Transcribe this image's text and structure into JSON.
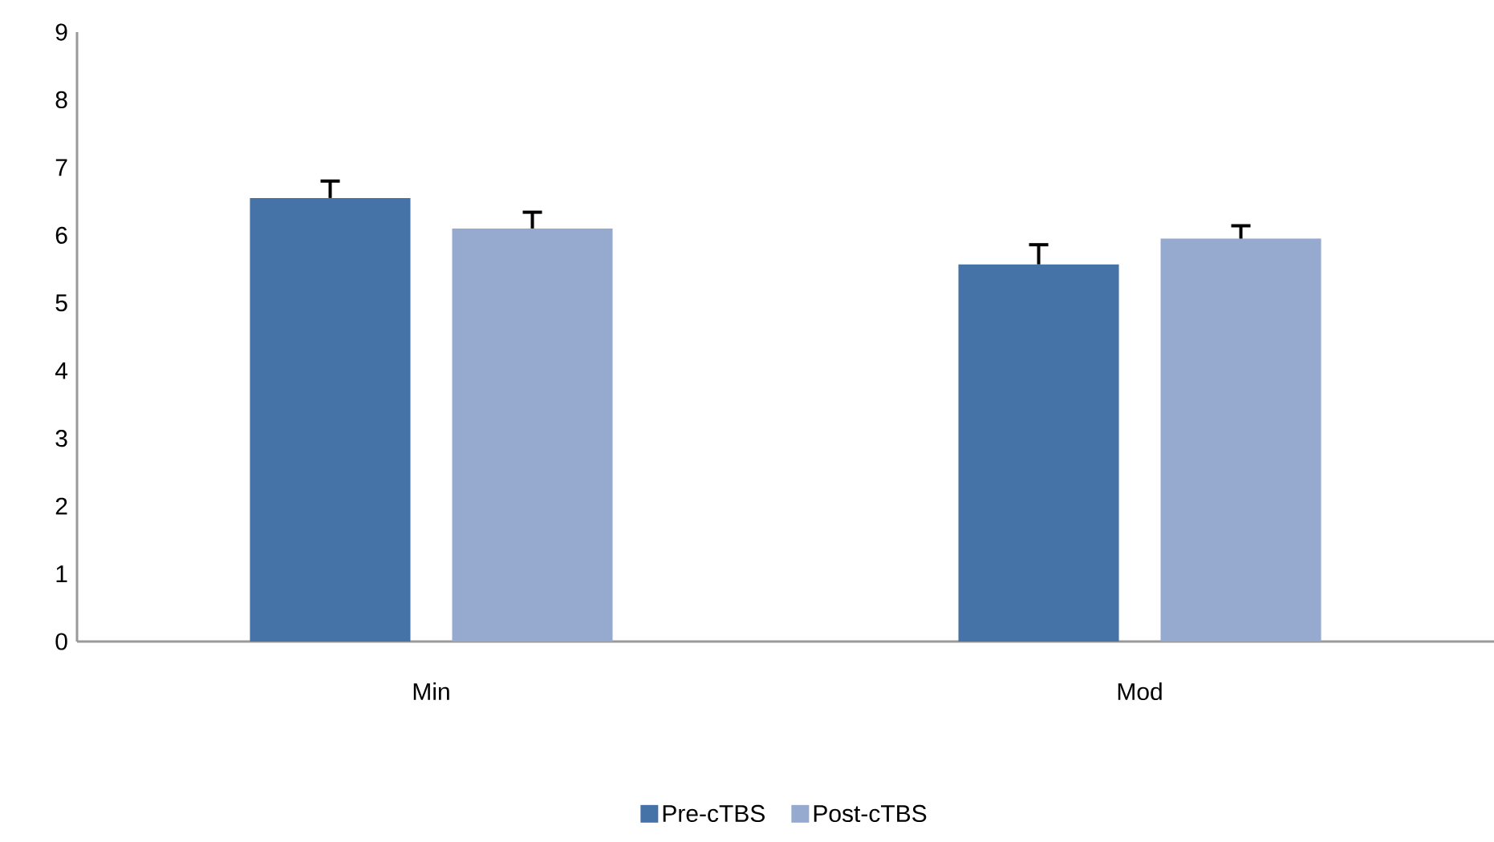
{
  "chart_data": {
    "type": "bar",
    "categories": [
      "Min",
      "Mod"
    ],
    "series": [
      {
        "name": "Pre-cTBS",
        "color": "#4573a7",
        "values": [
          6.55,
          5.57
        ],
        "errors": [
          [
            6.55,
            6.8
          ],
          [
            5.57,
            5.86
          ]
        ]
      },
      {
        "name": "Post-cTBS",
        "color": "#96aad0",
        "values": [
          6.1,
          5.95
        ],
        "errors": [
          [
            6.1,
            6.34
          ],
          [
            5.95,
            6.14
          ]
        ]
      }
    ],
    "ylim": [
      0,
      9
    ],
    "yticks": [
      0,
      1,
      2,
      3,
      4,
      5,
      6,
      7,
      8,
      9
    ],
    "grid": false,
    "legend": "bottom"
  }
}
